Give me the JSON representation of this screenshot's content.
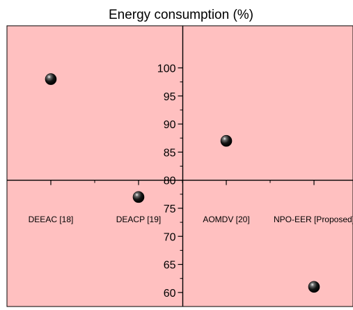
{
  "chart_data": {
    "type": "scatter",
    "title": "Energy consumption (%)",
    "xlabel": "",
    "ylabel": "",
    "categories": [
      "DEEAC [18]",
      "DEACP [19]",
      "AOMDV [20]",
      "NPO-EER [Proposed]"
    ],
    "values": [
      98,
      77,
      87,
      61
    ],
    "ylim": [
      57.5,
      107.5
    ],
    "y_ticks": [
      60,
      65,
      70,
      75,
      80,
      85,
      90,
      95,
      100
    ],
    "y_axis_crosses_x_between_categories": [
      2,
      3
    ],
    "x_axis_crosses_y_at": 80,
    "grid": false,
    "legend": "none",
    "colors": {
      "background": "#ffc0c0",
      "marker": "#000000",
      "axis": "#000000"
    }
  }
}
